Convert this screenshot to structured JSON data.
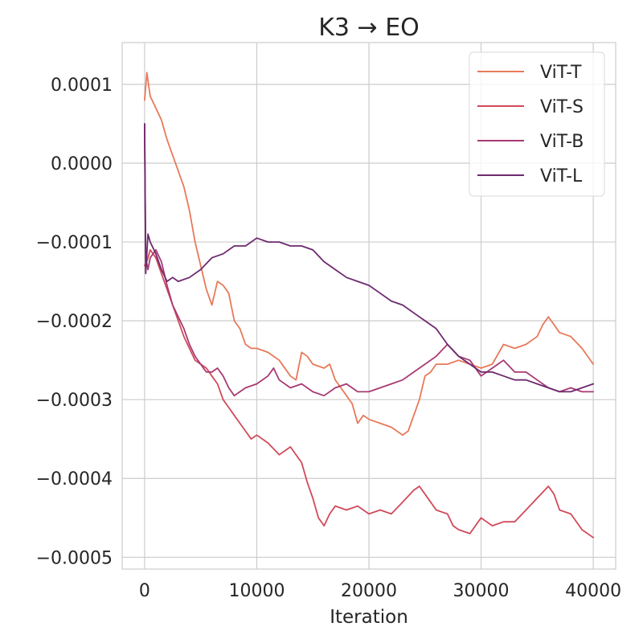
{
  "chart_data": {
    "type": "line",
    "title": "K3 → EO",
    "xlabel": "Iteration",
    "ylabel": "",
    "xlim": [
      -2000,
      42000
    ],
    "ylim": [
      -0.000515,
      0.000153
    ],
    "xticks": [
      0,
      10000,
      20000,
      30000,
      40000
    ],
    "xtick_labels": [
      "0",
      "10000",
      "20000",
      "30000",
      "40000"
    ],
    "yticks": [
      0.0001,
      0.0,
      -0.0001,
      -0.0002,
      -0.0003,
      -0.0004,
      -0.0005
    ],
    "ytick_labels": [
      "0.0001",
      "0.0000",
      "−0.0001",
      "−0.0002",
      "−0.0003",
      "−0.0004",
      "−0.0005"
    ],
    "grid": true,
    "legend_position": "top-right",
    "series": [
      {
        "name": "ViT-T",
        "color": "#e8795a",
        "x": [
          0,
          200,
          500,
          1000,
          1500,
          2000,
          2500,
          3000,
          3500,
          4000,
          4500,
          5000,
          5500,
          6000,
          6500,
          7000,
          7500,
          8000,
          8500,
          9000,
          9500,
          10000,
          11000,
          12000,
          13000,
          13500,
          14000,
          14500,
          15000,
          16000,
          16500,
          17000,
          17500,
          18000,
          18500,
          19000,
          19500,
          20000,
          21000,
          22000,
          23000,
          23500,
          24000,
          24500,
          25000,
          25500,
          26000,
          27000,
          28000,
          29000,
          30000,
          31000,
          32000,
          33000,
          34000,
          35000,
          35500,
          36000,
          36500,
          37000,
          38000,
          39000,
          40000
        ],
        "values": [
          8e-05,
          0.000115,
          8.5e-05,
          7e-05,
          5.5e-05,
          3e-05,
          1e-05,
          -1e-05,
          -3e-05,
          -6e-05,
          -0.0001,
          -0.00013,
          -0.00016,
          -0.00018,
          -0.00015,
          -0.000155,
          -0.000165,
          -0.0002,
          -0.00021,
          -0.00023,
          -0.000235,
          -0.000235,
          -0.00024,
          -0.00025,
          -0.00027,
          -0.000275,
          -0.00024,
          -0.000245,
          -0.000255,
          -0.00026,
          -0.000255,
          -0.000275,
          -0.000285,
          -0.000295,
          -0.000305,
          -0.00033,
          -0.00032,
          -0.000325,
          -0.00033,
          -0.000335,
          -0.000345,
          -0.00034,
          -0.00032,
          -0.0003,
          -0.00027,
          -0.000265,
          -0.000255,
          -0.000255,
          -0.00025,
          -0.000255,
          -0.00026,
          -0.000255,
          -0.00023,
          -0.000235,
          -0.00023,
          -0.00022,
          -0.000205,
          -0.000195,
          -0.000205,
          -0.000215,
          -0.00022,
          -0.000235,
          -0.000255
        ]
      },
      {
        "name": "ViT-S",
        "color": "#d14a5a",
        "x": [
          0,
          200,
          500,
          1000,
          1500,
          2000,
          2500,
          3000,
          3500,
          4000,
          4500,
          5000,
          5500,
          6000,
          6500,
          7000,
          7500,
          8000,
          8500,
          9000,
          9500,
          10000,
          11000,
          12000,
          13000,
          14000,
          14500,
          15000,
          15500,
          16000,
          16500,
          17000,
          18000,
          19000,
          20000,
          21000,
          22000,
          23000,
          24000,
          24500,
          25000,
          25500,
          26000,
          27000,
          27500,
          28000,
          29000,
          30000,
          31000,
          32000,
          33000,
          34000,
          35000,
          36000,
          36500,
          37000,
          38000,
          39000,
          40000
        ],
        "values": [
          -0.00013,
          -0.000125,
          -0.00011,
          -0.00012,
          -0.00014,
          -0.00016,
          -0.00018,
          -0.0002,
          -0.00022,
          -0.000235,
          -0.00025,
          -0.000255,
          -0.00026,
          -0.00027,
          -0.00028,
          -0.0003,
          -0.00031,
          -0.00032,
          -0.00033,
          -0.00034,
          -0.00035,
          -0.000345,
          -0.000355,
          -0.00037,
          -0.00036,
          -0.00038,
          -0.000405,
          -0.000425,
          -0.00045,
          -0.00046,
          -0.000445,
          -0.000435,
          -0.00044,
          -0.000435,
          -0.000445,
          -0.00044,
          -0.000445,
          -0.00043,
          -0.000415,
          -0.00041,
          -0.00042,
          -0.00043,
          -0.00044,
          -0.000445,
          -0.00046,
          -0.000465,
          -0.00047,
          -0.00045,
          -0.00046,
          -0.000455,
          -0.000455,
          -0.00044,
          -0.000425,
          -0.00041,
          -0.00042,
          -0.00044,
          -0.000445,
          -0.000465,
          -0.000475
        ]
      },
      {
        "name": "ViT-B",
        "color": "#a83a72",
        "x": [
          0,
          100,
          300,
          500,
          1000,
          1500,
          2000,
          2500,
          3000,
          3500,
          4000,
          4500,
          5000,
          5500,
          6000,
          6500,
          7000,
          7500,
          8000,
          8500,
          9000,
          10000,
          11000,
          11500,
          12000,
          13000,
          14000,
          15000,
          16000,
          17000,
          18000,
          19000,
          20000,
          21000,
          22000,
          23000,
          24000,
          25000,
          26000,
          27000,
          28000,
          29000,
          30000,
          31000,
          32000,
          33000,
          34000,
          35000,
          36000,
          37000,
          38000,
          39000,
          40000
        ],
        "values": [
          5e-05,
          -0.00012,
          -0.000135,
          -0.00012,
          -0.00011,
          -0.000125,
          -0.000155,
          -0.00018,
          -0.000195,
          -0.00021,
          -0.00023,
          -0.000245,
          -0.000255,
          -0.000265,
          -0.000265,
          -0.00026,
          -0.00027,
          -0.000285,
          -0.000295,
          -0.00029,
          -0.000285,
          -0.00028,
          -0.00027,
          -0.00026,
          -0.000275,
          -0.000285,
          -0.00028,
          -0.00029,
          -0.000295,
          -0.000285,
          -0.00028,
          -0.00029,
          -0.00029,
          -0.000285,
          -0.00028,
          -0.000275,
          -0.000265,
          -0.000255,
          -0.000245,
          -0.00023,
          -0.000245,
          -0.00025,
          -0.00027,
          -0.00026,
          -0.00025,
          -0.000265,
          -0.000265,
          -0.000275,
          -0.000285,
          -0.00029,
          -0.000285,
          -0.00029,
          -0.00029
        ]
      },
      {
        "name": "ViT-L",
        "color": "#6e2a6e",
        "x": [
          0,
          100,
          300,
          500,
          1000,
          1500,
          2000,
          2500,
          3000,
          4000,
          5000,
          6000,
          7000,
          8000,
          9000,
          10000,
          11000,
          12000,
          13000,
          14000,
          15000,
          16000,
          17000,
          18000,
          19000,
          20000,
          21000,
          22000,
          23000,
          24000,
          25000,
          26000,
          27000,
          28000,
          29000,
          30000,
          31000,
          32000,
          33000,
          34000,
          35000,
          36000,
          37000,
          38000,
          39000,
          40000
        ],
        "values": [
          5e-05,
          -0.00014,
          -9e-05,
          -0.0001,
          -0.000115,
          -0.000135,
          -0.00015,
          -0.000145,
          -0.00015,
          -0.000145,
          -0.000135,
          -0.00012,
          -0.000115,
          -0.000105,
          -0.000105,
          -9.5e-05,
          -0.0001,
          -0.0001,
          -0.000105,
          -0.000105,
          -0.00011,
          -0.000125,
          -0.000135,
          -0.000145,
          -0.00015,
          -0.000155,
          -0.000165,
          -0.000175,
          -0.00018,
          -0.00019,
          -0.0002,
          -0.00021,
          -0.00023,
          -0.000245,
          -0.000255,
          -0.000265,
          -0.000265,
          -0.00027,
          -0.000275,
          -0.000275,
          -0.00028,
          -0.000285,
          -0.00029,
          -0.00029,
          -0.000285,
          -0.00028
        ]
      }
    ]
  }
}
